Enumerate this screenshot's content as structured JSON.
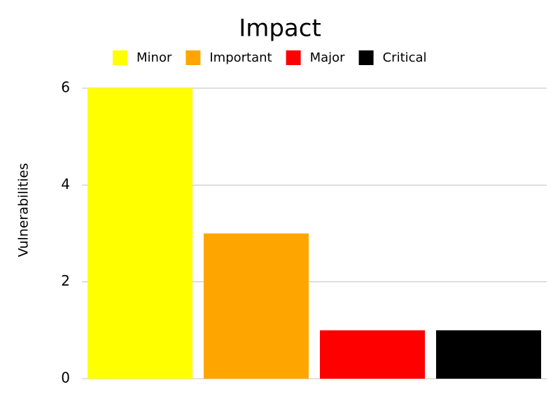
{
  "chart_data": {
    "type": "bar",
    "title": "Impact",
    "y_label": "Vulnerabilities",
    "categories": [
      "Minor",
      "Important",
      "Major",
      "Critical"
    ],
    "values": [
      6,
      3,
      1,
      1
    ],
    "colors": [
      "#ffff00",
      "#ffa500",
      "#ff0000",
      "#000000"
    ],
    "ylim": [
      0,
      6
    ],
    "yticks": [
      0,
      2,
      4,
      6
    ],
    "grid": true,
    "legend": "top"
  }
}
